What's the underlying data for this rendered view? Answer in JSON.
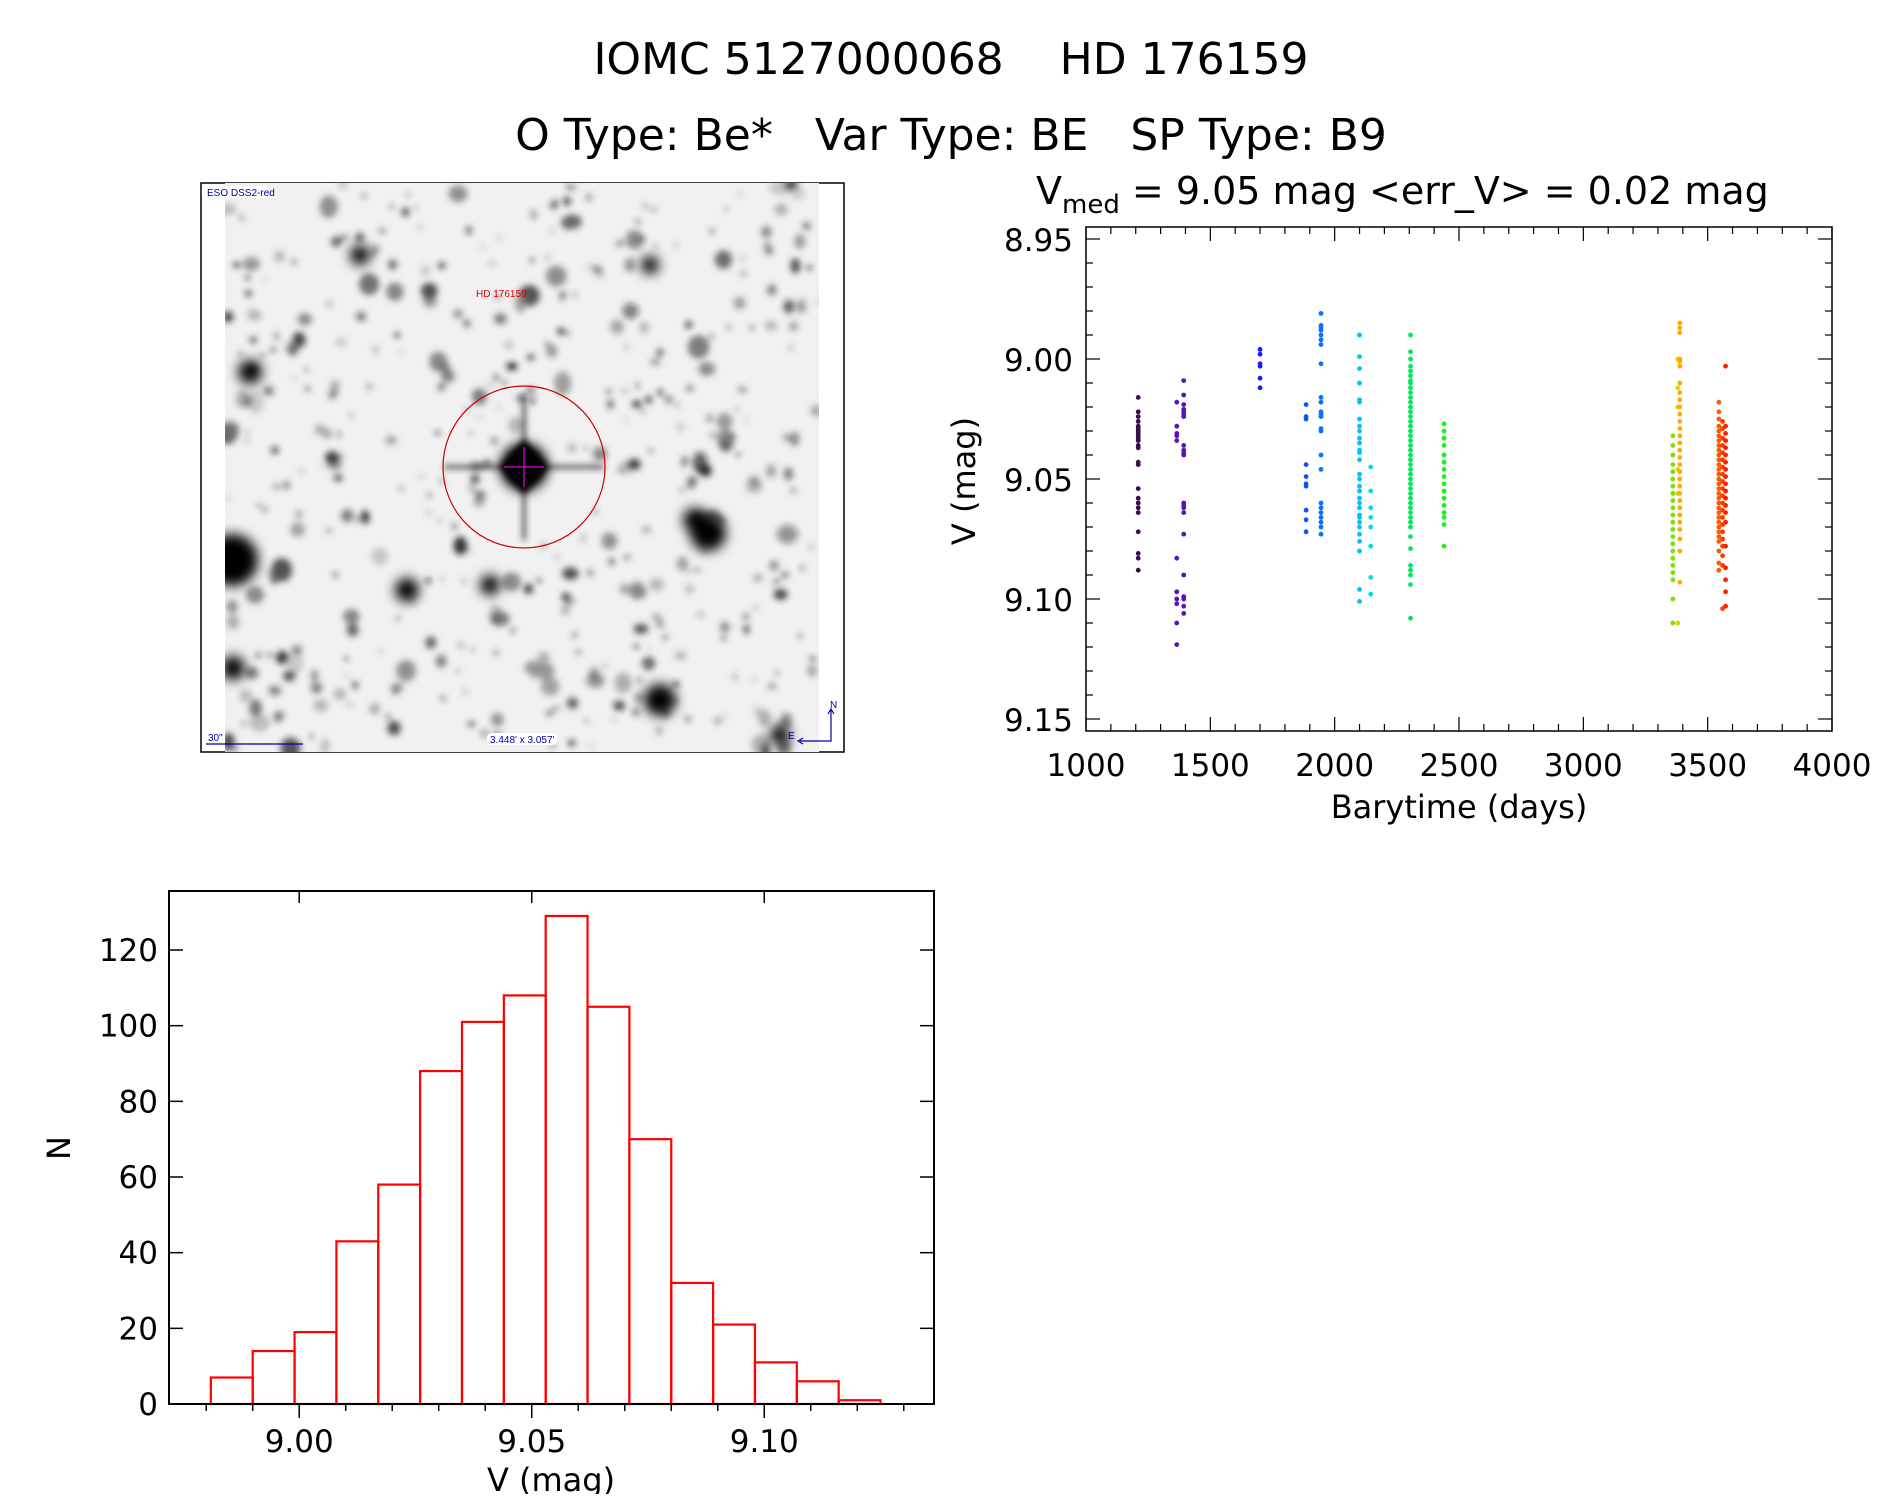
{
  "header": {
    "title": "IOMC 5127000068    HD 176159",
    "subtitle": "O Type: Be*   Var Type: BE   SP Type: B9"
  },
  "sky_image": {
    "survey_label": "ESO DSS2-red",
    "target_label": "HD 176159",
    "scale_label": "30\"",
    "size_label": "3.448' x 3.057'",
    "north_label": "N",
    "east_label": "E",
    "marker_color": "#cc0000",
    "overlay_color": "#0000aa"
  },
  "chart_data": [
    {
      "type": "scatter",
      "title_prefix": "V",
      "title_sub": "med",
      "title_rest": " = 9.05 mag <err_V> = 0.02 mag",
      "xlabel": "Barytime (days)",
      "ylabel": "V (mag)",
      "xlim": [
        1000,
        4000
      ],
      "ylim": [
        8.945,
        9.155
      ],
      "y_inverted": true,
      "xticks": [
        "1000",
        "1500",
        "2000",
        "2500",
        "3000",
        "3500",
        "4000"
      ],
      "yticks": [
        "8.95",
        "9.00",
        "9.05",
        "9.10",
        "9.15"
      ],
      "grid": false,
      "groups": [
        {
          "x": 1210,
          "color": "#3c0a50",
          "y": [
            9.016,
            9.022,
            9.024,
            9.026,
            9.028,
            9.029,
            9.03,
            9.031,
            9.032,
            9.033,
            9.034,
            9.036,
            9.037,
            9.043,
            9.044,
            9.054,
            9.058,
            9.06,
            9.062,
            9.064,
            9.072,
            9.081,
            9.083,
            9.088
          ]
        },
        {
          "x": 1365,
          "color": "#5a14b4",
          "y": [
            9.018,
            9.028,
            9.031,
            9.032,
            9.034,
            9.083,
            9.097,
            9.1,
            9.102,
            9.11,
            9.119
          ]
        },
        {
          "x": 1393,
          "color": "#5a14b4",
          "y": [
            9.009,
            9.015,
            9.019,
            9.021,
            9.022,
            9.023,
            9.024,
            9.036,
            9.038,
            9.039,
            9.04,
            9.06,
            9.061,
            9.062,
            9.064,
            9.073,
            9.09,
            9.099,
            9.1,
            9.103,
            9.106
          ]
        },
        {
          "x": 1700,
          "color": "#1a1aff",
          "y": [
            8.996,
            8.998,
            9.002,
            9.003,
            9.008,
            9.012
          ]
        },
        {
          "x": 1885,
          "color": "#1050ff",
          "y": [
            9.019,
            9.024,
            9.025,
            9.044,
            9.049,
            9.052,
            9.053,
            9.063,
            9.067,
            9.072
          ]
        },
        {
          "x": 1945,
          "color": "#0a70ff",
          "y": [
            8.981,
            8.986,
            8.987,
            8.988,
            8.99,
            8.992,
            8.994,
            9.002,
            9.016,
            9.018,
            9.022,
            9.023,
            9.024,
            9.029,
            9.03,
            9.04,
            9.046,
            9.06,
            9.062,
            9.064,
            9.066,
            9.068,
            9.07,
            9.073
          ]
        },
        {
          "x": 2100,
          "color": "#00c0ff",
          "y": [
            8.99,
            8.999,
            9.004,
            9.01,
            9.017,
            9.018,
            9.025,
            9.028,
            9.03,
            9.033,
            9.035,
            9.038,
            9.039,
            9.042,
            9.048,
            9.05,
            9.053,
            9.055,
            9.058,
            9.06,
            9.062,
            9.065,
            9.066,
            9.068,
            9.07,
            9.073,
            9.076,
            9.08,
            9.096,
            9.101
          ]
        },
        {
          "x": 2145,
          "color": "#00e0e0",
          "y": [
            9.045,
            9.055,
            9.062,
            9.066,
            9.07,
            9.078,
            9.091,
            9.098
          ]
        },
        {
          "x": 2305,
          "color": "#00e860",
          "y": [
            8.99,
            8.997,
            9.0,
            9.003,
            9.005,
            9.007,
            9.009,
            9.01,
            9.012,
            9.014,
            9.016,
            9.018,
            9.02,
            9.022,
            9.024,
            9.026,
            9.028,
            9.03,
            9.032,
            9.034,
            9.036,
            9.038,
            9.04,
            9.042,
            9.044,
            9.046,
            9.048,
            9.05,
            9.052,
            9.054,
            9.056,
            9.058,
            9.06,
            9.062,
            9.064,
            9.066,
            9.068,
            9.07,
            9.074,
            9.079,
            9.086,
            9.088,
            9.09,
            9.094,
            9.108
          ]
        },
        {
          "x": 2440,
          "color": "#20ee20",
          "y": [
            9.027,
            9.03,
            9.033,
            9.036,
            9.04,
            9.043,
            9.046,
            9.049,
            9.052,
            9.055,
            9.058,
            9.061,
            9.064,
            9.066,
            9.069,
            9.078
          ]
        },
        {
          "x": 3360,
          "color": "#7ce000",
          "y": [
            9.032,
            9.036,
            9.04,
            9.044,
            9.047,
            9.05,
            9.053,
            9.056,
            9.059,
            9.062,
            9.065,
            9.068,
            9.071,
            9.074,
            9.077,
            9.08,
            9.083,
            9.086,
            9.089,
            9.092,
            9.1,
            9.11
          ]
        },
        {
          "x": 3380,
          "color": "#d8d800",
          "y": [
            9.0,
            9.012,
            9.02,
            9.046,
            9.056,
            9.11
          ]
        },
        {
          "x": 3388,
          "color": "#ffaa00",
          "y": [
            8.985,
            8.987,
            8.989,
            9.0,
            9.001,
            9.003,
            9.01,
            9.014,
            9.017,
            9.02,
            9.023,
            9.026,
            9.029,
            9.032,
            9.035,
            9.038,
            9.041,
            9.044,
            9.047,
            9.05,
            9.053,
            9.056,
            9.059,
            9.062,
            9.065,
            9.068,
            9.071,
            9.075,
            9.08,
            9.093
          ]
        },
        {
          "x": 3545,
          "color": "#ff5a00",
          "y": [
            9.018,
            9.022,
            9.025,
            9.028,
            9.03,
            9.032,
            9.034,
            9.036,
            9.038,
            9.04,
            9.042,
            9.044,
            9.046,
            9.048,
            9.05,
            9.052,
            9.054,
            9.056,
            9.058,
            9.06,
            9.062,
            9.064,
            9.066,
            9.068,
            9.07,
            9.072,
            9.074,
            9.076,
            9.08,
            9.085,
            9.088
          ]
        },
        {
          "x": 3560,
          "color": "#ff3c00",
          "y": [
            9.026,
            9.029,
            9.033,
            9.036,
            9.039,
            9.042,
            9.045,
            9.048,
            9.051,
            9.054,
            9.057,
            9.06,
            9.063,
            9.066,
            9.069,
            9.072,
            9.075,
            9.078,
            9.082,
            9.086,
            9.104
          ]
        },
        {
          "x": 3572,
          "color": "#ff1e00",
          "y": [
            9.003,
            9.028,
            9.031,
            9.034,
            9.037,
            9.04,
            9.043,
            9.046,
            9.049,
            9.052,
            9.055,
            9.058,
            9.061,
            9.064,
            9.068,
            9.078,
            9.087,
            9.092,
            9.097,
            9.103
          ]
        }
      ]
    },
    {
      "type": "bar",
      "style": "histogram-outline",
      "xlabel": "V (mag)",
      "ylabel": "N",
      "xlim": [
        8.972,
        9.1365
      ],
      "ylim": [
        0,
        135.6
      ],
      "xticks": [
        "9.00",
        "9.05",
        "9.10"
      ],
      "yticks": [
        "0",
        "20",
        "40",
        "60",
        "80",
        "100",
        "120"
      ],
      "grid": false,
      "color": "#ff0000",
      "bin_start": 8.981,
      "bin_width": 0.009,
      "values": [
        7,
        14,
        19,
        43,
        58,
        88,
        101,
        108,
        129,
        105,
        70,
        32,
        21,
        11,
        6,
        1
      ]
    }
  ]
}
